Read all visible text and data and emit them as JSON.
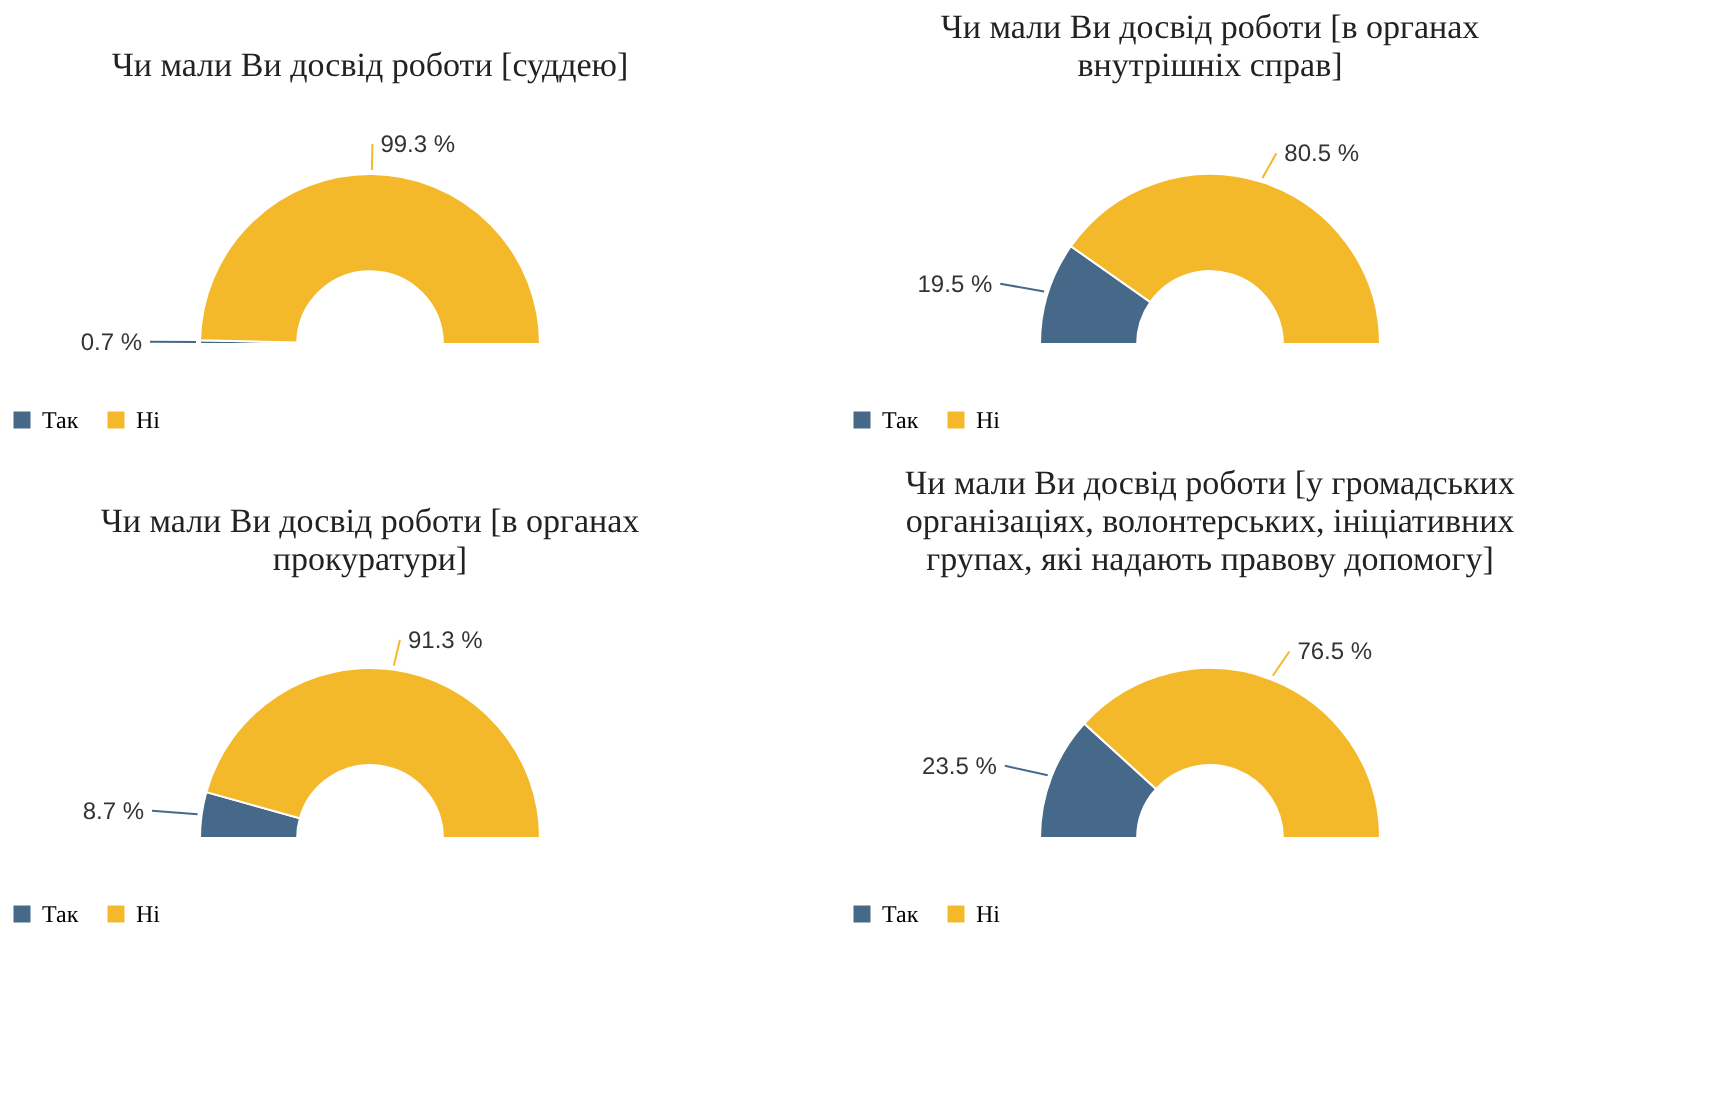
{
  "chart_data": [
    {
      "type": "donut",
      "title": "Чи мали Ви досвід роботи [суддею]",
      "categories": [
        "Так",
        "Ні"
      ],
      "values": [
        0.7,
        99.3
      ],
      "colors": [
        "#46698a",
        "#f4b92b"
      ],
      "value_labels": [
        "0.7 %",
        "99.3 %"
      ],
      "legend": "bottom"
    },
    {
      "type": "donut",
      "title": "Чи мали Ви досвід роботи [в органах внутрішніх справ]",
      "categories": [
        "Так",
        "Ні"
      ],
      "values": [
        19.5,
        80.5
      ],
      "colors": [
        "#46698a",
        "#f4b92b"
      ],
      "value_labels": [
        "19.5 %",
        "80.5 %"
      ],
      "legend": "bottom"
    },
    {
      "type": "donut",
      "title": "Чи мали Ви досвід роботи [в органах прокуратури]",
      "categories": [
        "Так",
        "Ні"
      ],
      "values": [
        8.7,
        91.3
      ],
      "colors": [
        "#46698a",
        "#f4b92b"
      ],
      "value_labels": [
        "8.7 %",
        "91.3 %"
      ],
      "legend": "bottom"
    },
    {
      "type": "donut",
      "title": "Чи мали Ви досвід роботи [у громадських організаціях, волонтерських, ініціативних групах, які надають правову допомогу]",
      "categories": [
        "Так",
        "Ні"
      ],
      "values": [
        23.5,
        76.5
      ],
      "colors": [
        "#46698a",
        "#f4b92b"
      ],
      "value_labels": [
        "23.5 %",
        "76.5 %"
      ],
      "legend": "bottom"
    }
  ]
}
